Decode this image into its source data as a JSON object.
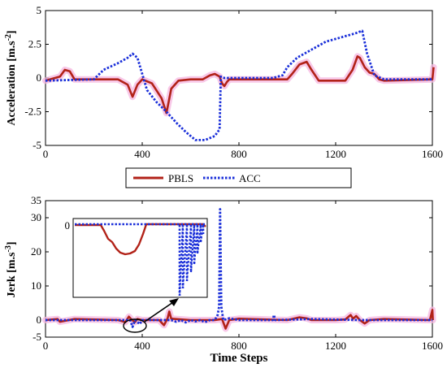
{
  "chart_data": [
    {
      "type": "line",
      "ylabel": "Acceleration [m.s",
      "ylabel_sup": "-2",
      "ylabel_close": "]",
      "xlim": [
        0,
        1600
      ],
      "ylim": [
        -5,
        5
      ],
      "xticks": [
        0,
        400,
        800,
        1200,
        1600
      ],
      "yticks": [
        5,
        2.5,
        0,
        -2.5,
        -5
      ],
      "ytick_labels": [
        "5",
        "2.5",
        "0",
        "-2.5",
        "-5"
      ],
      "series": [
        {
          "name": "PBLS",
          "color": "#b22218",
          "style": "solid",
          "x": [
            0,
            60,
            80,
            100,
            120,
            300,
            340,
            360,
            380,
            400,
            440,
            480,
            500,
            520,
            550,
            600,
            650,
            680,
            700,
            720,
            730,
            740,
            750,
            760,
            800,
            1000,
            1020,
            1050,
            1080,
            1100,
            1130,
            1150,
            1200,
            1240,
            1270,
            1290,
            1300,
            1320,
            1340,
            1360,
            1380,
            1400,
            1600,
            1605
          ],
          "y": [
            -0.2,
            0.1,
            0.6,
            0.5,
            -0.1,
            -0.1,
            -0.5,
            -1.4,
            -0.5,
            -0.1,
            -0.4,
            -1.5,
            -2.6,
            -0.8,
            -0.2,
            -0.1,
            -0.1,
            0.2,
            0.3,
            0.1,
            -0.4,
            -0.6,
            -0.3,
            -0.1,
            -0.1,
            -0.1,
            0.3,
            1.0,
            1.2,
            0.6,
            -0.2,
            -0.2,
            -0.2,
            -0.2,
            0.6,
            1.6,
            1.5,
            0.8,
            0.4,
            0.3,
            -0.1,
            -0.2,
            -0.1,
            0.8
          ]
        },
        {
          "name": "ACC",
          "color": "#1a2fd9",
          "style": "dotted",
          "x": [
            0,
            200,
            240,
            300,
            340,
            360,
            380,
            420,
            460,
            500,
            540,
            580,
            620,
            660,
            700,
            720,
            725,
            740,
            940,
            980,
            1000,
            1040,
            1080,
            1120,
            1160,
            1200,
            1240,
            1280,
            1310,
            1330,
            1360,
            1400,
            1600
          ],
          "y": [
            -0.2,
            -0.1,
            0.6,
            1.1,
            1.5,
            1.8,
            1.5,
            -0.9,
            -1.8,
            -2.5,
            -3.3,
            -4.0,
            -4.6,
            -4.6,
            -4.3,
            -3.8,
            0.1,
            0.0,
            0.0,
            0.2,
            0.8,
            1.5,
            1.9,
            2.3,
            2.7,
            2.9,
            3.1,
            3.3,
            3.5,
            1.8,
            0.2,
            -0.1,
            -0.1
          ]
        }
      ]
    },
    {
      "type": "line",
      "xlabel": "Time Steps",
      "ylabel": "Jerk [m.s",
      "ylabel_sup": "-3",
      "ylabel_close": "]",
      "xlim": [
        0,
        1600
      ],
      "ylim": [
        -5,
        35
      ],
      "xticks": [
        0,
        400,
        800,
        1200,
        1600
      ],
      "yticks": [
        35,
        30,
        20,
        10,
        0,
        -5
      ],
      "ytick_labels": [
        "35",
        "30",
        "20",
        "10",
        "0",
        "-5"
      ],
      "inset_ytick": "0",
      "series": [
        {
          "name": "PBLS",
          "color": "#b22218",
          "style": "solid",
          "x": [
            0,
            50,
            60,
            120,
            300,
            330,
            345,
            355,
            370,
            380,
            400,
            470,
            490,
            505,
            512,
            520,
            600,
            700,
            730,
            745,
            760,
            800,
            1000,
            1050,
            1080,
            1100,
            1200,
            1240,
            1262,
            1272,
            1285,
            1300,
            1320,
            1340,
            1400,
            1590,
            1600,
            1602
          ],
          "y": [
            0,
            0.3,
            -0.5,
            0.3,
            0,
            -0.6,
            1.0,
            0.2,
            -0.6,
            0.3,
            0,
            0,
            -1.5,
            0.5,
            2.5,
            0.4,
            0,
            0,
            0.3,
            -2.5,
            0,
            0.4,
            0,
            0.8,
            0.5,
            0,
            0,
            0.2,
            1.5,
            0.4,
            1.2,
            0,
            -1.0,
            0,
            0.3,
            0,
            3.0,
            0
          ]
        },
        {
          "name": "ACC",
          "color": "#1a2fd9",
          "style": "dotted",
          "x": [
            0,
            350,
            360,
            370,
            390,
            400,
            520,
            540,
            560,
            580,
            600,
            620,
            640,
            660,
            680,
            700,
            712,
            718,
            722,
            727,
            735,
            760,
            800,
            940,
            945,
            950,
            1100,
            1300,
            1600
          ],
          "y": [
            0,
            0,
            -2.0,
            0,
            -1.2,
            0,
            0,
            -0.5,
            0,
            -0.7,
            0,
            -0.4,
            0,
            -0.6,
            0,
            0,
            1.5,
            4.0,
            32.5,
            4.0,
            0,
            0.5,
            0,
            0,
            1.5,
            0,
            0.3,
            0,
            0
          ]
        }
      ]
    }
  ],
  "legend": {
    "items": [
      {
        "name": "PBLS",
        "color": "#b22218",
        "style": "solid"
      },
      {
        "name": "ACC",
        "color": "#1a2fd9",
        "style": "dotted"
      }
    ]
  }
}
